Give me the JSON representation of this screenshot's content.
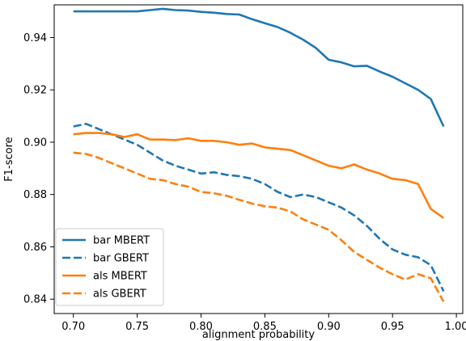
{
  "chart_data": {
    "type": "line",
    "title": "",
    "xlabel": "alignment probability",
    "ylabel": "F1-score",
    "xlim": [
      0.685,
      1.005
    ],
    "ylim": [
      0.8345,
      0.9525
    ],
    "xticks": [
      "0.70",
      "0.75",
      "0.80",
      "0.85",
      "0.90",
      "0.95",
      "1.00"
    ],
    "yticks": [
      "0.84",
      "0.86",
      "0.88",
      "0.90",
      "0.92",
      "0.94"
    ],
    "grid": false,
    "legend_position": "lower-left",
    "series": [
      {
        "name": "bar MBERT",
        "color": "#1f77b4",
        "dash": "solid",
        "x": [
          0.7,
          0.71,
          0.72,
          0.73,
          0.74,
          0.75,
          0.76,
          0.77,
          0.78,
          0.79,
          0.8,
          0.81,
          0.82,
          0.83,
          0.84,
          0.85,
          0.86,
          0.87,
          0.88,
          0.89,
          0.9,
          0.91,
          0.92,
          0.93,
          0.94,
          0.95,
          0.96,
          0.97,
          0.98,
          0.99
        ],
        "y": [
          0.95,
          0.95,
          0.95,
          0.95,
          0.95,
          0.95,
          0.9505,
          0.951,
          0.9505,
          0.9503,
          0.9498,
          0.9495,
          0.949,
          0.9488,
          0.947,
          0.9455,
          0.944,
          0.9418,
          0.9392,
          0.936,
          0.9315,
          0.9305,
          0.929,
          0.9292,
          0.927,
          0.925,
          0.9225,
          0.92,
          0.9165,
          0.906
        ]
      },
      {
        "name": "bar GBERT",
        "color": "#1f77b4",
        "dash": "dashed",
        "x": [
          0.7,
          0.71,
          0.72,
          0.73,
          0.74,
          0.75,
          0.76,
          0.77,
          0.78,
          0.79,
          0.8,
          0.81,
          0.82,
          0.83,
          0.84,
          0.85,
          0.86,
          0.87,
          0.88,
          0.89,
          0.9,
          0.91,
          0.92,
          0.93,
          0.94,
          0.95,
          0.96,
          0.97,
          0.98,
          0.99
        ],
        "y": [
          0.906,
          0.907,
          0.905,
          0.903,
          0.901,
          0.899,
          0.896,
          0.893,
          0.891,
          0.8895,
          0.888,
          0.8885,
          0.8875,
          0.887,
          0.886,
          0.884,
          0.881,
          0.879,
          0.88,
          0.879,
          0.877,
          0.875,
          0.872,
          0.868,
          0.863,
          0.859,
          0.857,
          0.856,
          0.853,
          0.843
        ]
      },
      {
        "name": "als MBERT",
        "color": "#ff7f0e",
        "dash": "solid",
        "x": [
          0.7,
          0.71,
          0.72,
          0.73,
          0.74,
          0.75,
          0.76,
          0.77,
          0.78,
          0.79,
          0.8,
          0.81,
          0.82,
          0.83,
          0.84,
          0.85,
          0.86,
          0.87,
          0.88,
          0.89,
          0.9,
          0.91,
          0.92,
          0.93,
          0.94,
          0.95,
          0.96,
          0.97,
          0.98,
          0.99
        ],
        "y": [
          0.903,
          0.9035,
          0.9035,
          0.903,
          0.902,
          0.903,
          0.901,
          0.901,
          0.9008,
          0.9015,
          0.9005,
          0.9005,
          0.9,
          0.899,
          0.8995,
          0.898,
          0.8975,
          0.897,
          0.895,
          0.893,
          0.891,
          0.89,
          0.8915,
          0.8895,
          0.888,
          0.886,
          0.8855,
          0.884,
          0.8745,
          0.871
        ]
      },
      {
        "name": "als GBERT",
        "color": "#ff7f0e",
        "dash": "dashed",
        "x": [
          0.7,
          0.71,
          0.72,
          0.73,
          0.74,
          0.75,
          0.76,
          0.77,
          0.78,
          0.79,
          0.8,
          0.81,
          0.82,
          0.83,
          0.84,
          0.85,
          0.86,
          0.87,
          0.88,
          0.89,
          0.9,
          0.91,
          0.92,
          0.93,
          0.94,
          0.95,
          0.96,
          0.97,
          0.98,
          0.99
        ],
        "y": [
          0.896,
          0.8955,
          0.894,
          0.892,
          0.89,
          0.888,
          0.886,
          0.8855,
          0.884,
          0.883,
          0.881,
          0.8805,
          0.8795,
          0.878,
          0.8765,
          0.8755,
          0.875,
          0.8735,
          0.8705,
          0.8685,
          0.8665,
          0.8625,
          0.858,
          0.855,
          0.852,
          0.8495,
          0.8475,
          0.8495,
          0.848,
          0.839
        ]
      }
    ]
  }
}
